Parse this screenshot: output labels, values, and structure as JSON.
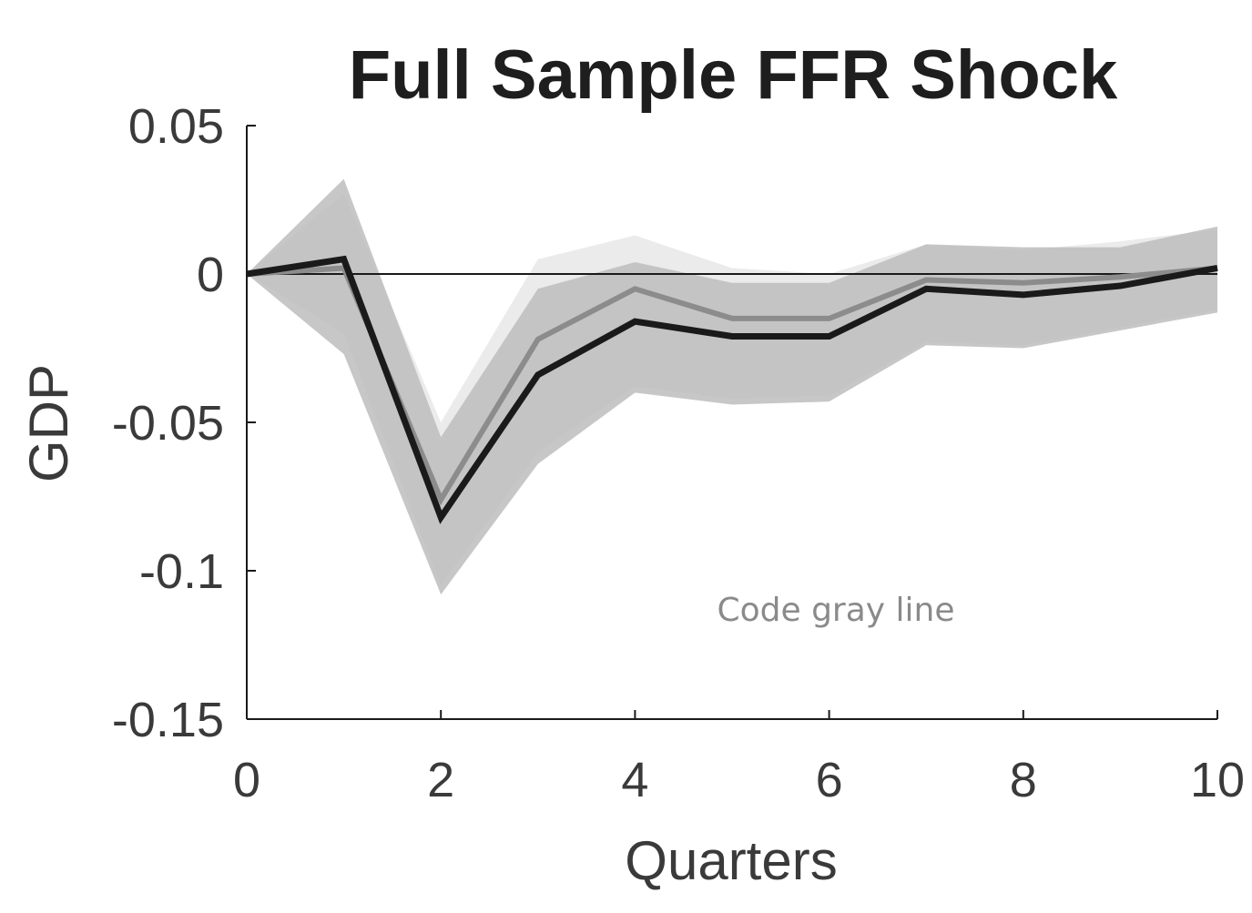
{
  "chart_data": {
    "type": "line",
    "title": "Full Sample FFR Shock",
    "xlabel": "Quarters",
    "ylabel": "GDP",
    "xlim": [
      0,
      10
    ],
    "ylim": [
      -0.15,
      0.05
    ],
    "xticks": [
      0,
      2,
      4,
      6,
      8,
      10
    ],
    "yticks": [
      0.05,
      0,
      -0.05,
      -0.1,
      -0.15
    ],
    "xtick_labels": [
      "0",
      "2",
      "4",
      "6",
      "8",
      "10"
    ],
    "ytick_labels": [
      "0.05",
      "0",
      "-0.05",
      "-0.1",
      "-0.15"
    ],
    "grid": false,
    "zero_line": true,
    "x": [
      0,
      1,
      2,
      3,
      4,
      5,
      6,
      7,
      8,
      9,
      10
    ],
    "series": [
      {
        "role": "main",
        "color": "#1a1a1a",
        "values": [
          0.0,
          0.005,
          -0.082,
          -0.034,
          -0.016,
          -0.021,
          -0.021,
          -0.005,
          -0.007,
          -0.004,
          0.002
        ]
      },
      {
        "role": "comparison",
        "color": "#8c8c8c",
        "values": [
          0.0,
          0.002,
          -0.076,
          -0.022,
          -0.005,
          -0.015,
          -0.015,
          -0.002,
          -0.003,
          -0.001,
          0.002
        ]
      }
    ],
    "bands": [
      {
        "role": "light-band",
        "color": "#e8e8e8",
        "upper": [
          0.0,
          0.027,
          -0.05,
          0.005,
          0.013,
          0.002,
          0.0,
          0.01,
          0.008,
          0.011,
          0.015
        ],
        "lower": [
          0.0,
          -0.02,
          -0.105,
          -0.06,
          -0.038,
          -0.042,
          -0.041,
          -0.023,
          -0.024,
          -0.018,
          -0.012
        ]
      },
      {
        "role": "dark-band",
        "color": "#bdbdbd",
        "upper": [
          0.0,
          0.032,
          -0.055,
          -0.005,
          0.004,
          -0.003,
          -0.003,
          0.01,
          0.009,
          0.009,
          0.016
        ],
        "lower": [
          0.0,
          -0.027,
          -0.108,
          -0.064,
          -0.04,
          -0.044,
          -0.043,
          -0.024,
          -0.025,
          -0.019,
          -0.013
        ]
      }
    ],
    "annotation": "Code gray line"
  }
}
